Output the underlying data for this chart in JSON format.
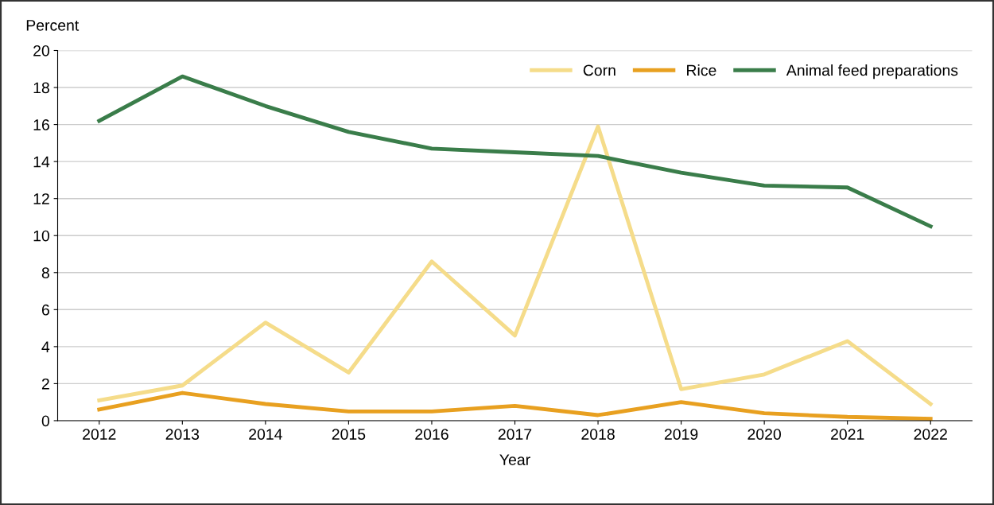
{
  "chart_data": {
    "type": "line",
    "xlabel": "Year",
    "ylabel": "Percent",
    "categories": [
      "2012",
      "2013",
      "2014",
      "2015",
      "2016",
      "2017",
      "2018",
      "2019",
      "2020",
      "2021",
      "2022"
    ],
    "series": [
      {
        "name": "Corn",
        "color": "#f5dc8a",
        "values": [
          1.1,
          1.9,
          5.3,
          2.6,
          8.6,
          4.6,
          15.9,
          1.7,
          2.5,
          4.3,
          0.9
        ]
      },
      {
        "name": "Rice",
        "color": "#e8a020",
        "values": [
          0.6,
          1.5,
          0.9,
          0.5,
          0.5,
          0.8,
          0.3,
          1.0,
          0.4,
          0.2,
          0.1
        ]
      },
      {
        "name": "Animal feed preparations",
        "color": "#3a7d4a",
        "values": [
          16.2,
          18.6,
          17.0,
          15.6,
          14.7,
          14.5,
          14.3,
          13.4,
          12.7,
          12.6,
          10.5
        ]
      }
    ],
    "ylim": [
      0,
      20
    ],
    "yticks": [
      0,
      2,
      4,
      6,
      8,
      10,
      12,
      14,
      16,
      18,
      20
    ],
    "grid": "y",
    "legend": "top right",
    "line_style": "solid",
    "marker": "none"
  }
}
